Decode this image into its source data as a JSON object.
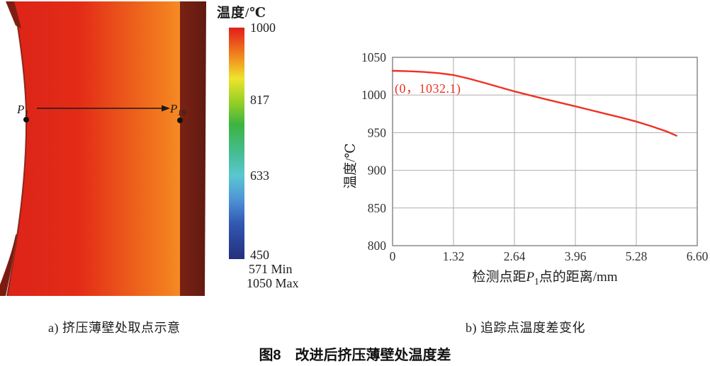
{
  "figure": {
    "title": "图8　改进后挤压薄壁处温度差",
    "panel_a": {
      "caption": "a) 挤压薄壁处取点示意",
      "point_start": {
        "base": "P",
        "sub": "1"
      },
      "point_end": {
        "base": "P",
        "sub": "19"
      }
    },
    "panel_b": {
      "caption": "b) 追踪点温度差变化"
    }
  },
  "colorbar": {
    "title": "温度/℃",
    "ticks": [
      "1000",
      "817",
      "633",
      "450"
    ],
    "min_label": "571  Min",
    "max_label": "1050 Max",
    "colors": [
      "#e01d1c",
      "#f07c1c",
      "#efe32b",
      "#8fce27",
      "#3cb342",
      "#45bd92",
      "#5ac7d1",
      "#4f95d6",
      "#3057b2",
      "#262f7d"
    ]
  },
  "chart_data": {
    "type": "line",
    "title": "",
    "xlabel": {
      "prefix": "检测点距",
      "var": "P",
      "sub": "1",
      "suffix": "点的距离/mm"
    },
    "ylabel": "温度/℃",
    "xlim": [
      0,
      6.6
    ],
    "ylim": [
      800,
      1050
    ],
    "xticks": [
      0,
      1.32,
      2.64,
      3.96,
      5.28,
      6.6
    ],
    "xtick_labels": [
      "0",
      "1.32",
      "2.64",
      "3.96",
      "5.28",
      "6.60"
    ],
    "yticks": [
      800,
      850,
      900,
      950,
      1000,
      1050
    ],
    "grid": true,
    "legend": "none",
    "annotation": {
      "text": "(0，1032.1)",
      "x": 0,
      "y": 1032.1,
      "color": "#ee3124"
    },
    "series": [
      {
        "name": "追踪点温度",
        "color": "#ee3124",
        "x": [
          0,
          0.33,
          0.66,
          1.0,
          1.32,
          1.65,
          1.98,
          2.31,
          2.64,
          2.97,
          3.3,
          3.63,
          3.96,
          4.29,
          4.62,
          4.95,
          5.28,
          5.61,
          5.94,
          6.15
        ],
        "y": [
          1032.1,
          1031.6,
          1030.6,
          1029.0,
          1026.5,
          1021.8,
          1016.3,
          1010.5,
          1004.8,
          999.6,
          994.6,
          989.8,
          985.0,
          980.0,
          975.0,
          970.0,
          964.8,
          958.5,
          951.5,
          946.0
        ]
      }
    ]
  }
}
